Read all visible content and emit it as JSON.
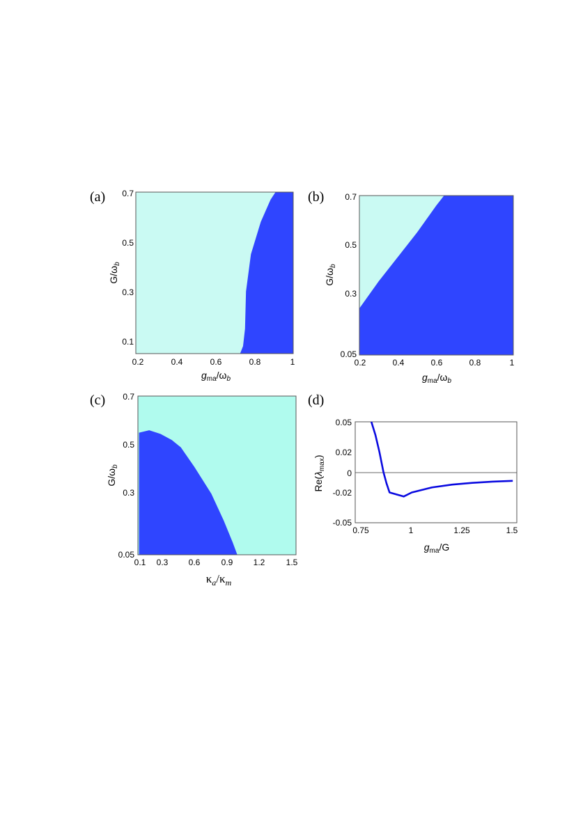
{
  "colors": {
    "stable": "#2f45ff",
    "unstable_light": "#cafaf3",
    "unstable_c": "#b0fbee",
    "curve": "#0a0ae0",
    "zero_line": "#666666"
  },
  "chart_data": [
    {
      "id": "a",
      "type": "heatmap",
      "panel_label": "(a)",
      "xlabel": {
        "main": "g",
        "sub": "ma",
        "rest": "/ω",
        "sub2": "b"
      },
      "ylabel": "G/ω_b",
      "xlim": [
        0.2,
        1.0
      ],
      "ylim": [
        0.05,
        0.7
      ],
      "xticks": [
        "0.2",
        "0.4",
        "0.6",
        "0.8",
        "1"
      ],
      "yticks": [
        "0.1",
        "0.3",
        "0.5",
        "0.7"
      ],
      "boundary": [
        [
          0.73,
          0.05
        ],
        [
          0.745,
          0.08
        ],
        [
          0.755,
          0.15
        ],
        [
          0.76,
          0.3
        ],
        [
          0.785,
          0.45
        ],
        [
          0.835,
          0.58
        ],
        [
          0.885,
          0.67
        ],
        [
          0.91,
          0.7
        ]
      ],
      "stable_side": "right"
    },
    {
      "id": "b",
      "type": "heatmap",
      "panel_label": "(b)",
      "xlabel": {
        "main": "g",
        "sub": "ma",
        "rest": "/ω",
        "sub2": "b"
      },
      "ylabel": "G/ω_b",
      "xlim": [
        0.2,
        1.0
      ],
      "ylim": [
        0.05,
        0.7
      ],
      "xticks": [
        "0.2",
        "0.4",
        "0.6",
        "0.8",
        "1"
      ],
      "yticks": [
        "0.05",
        "0.3",
        "0.5",
        "0.7"
      ],
      "boundary": [
        [
          0.2,
          0.24
        ],
        [
          0.3,
          0.35
        ],
        [
          0.4,
          0.45
        ],
        [
          0.5,
          0.55
        ],
        [
          0.6,
          0.66
        ],
        [
          0.64,
          0.7
        ]
      ],
      "stable_side": "below-right"
    },
    {
      "id": "c",
      "type": "heatmap",
      "panel_label": "(c)",
      "xlabel": {
        "main": "κ",
        "sub": "a",
        "rest": "/κ",
        "sub2": "m"
      },
      "ylabel": "G/ω_b",
      "xlim": [
        0.1,
        1.5
      ],
      "ylim": [
        0.05,
        0.7
      ],
      "xticks": [
        "0.1",
        "0.3",
        "0.6",
        "0.9",
        "1.2",
        "1.5"
      ],
      "yticks": [
        "0.05",
        "0.3",
        "0.5",
        "0.7"
      ],
      "boundary": [
        [
          0.11,
          0.05
        ],
        [
          0.11,
          0.55
        ],
        [
          0.2,
          0.56
        ],
        [
          0.3,
          0.545
        ],
        [
          0.4,
          0.52
        ],
        [
          0.48,
          0.49
        ],
        [
          0.6,
          0.41
        ],
        [
          0.75,
          0.3
        ],
        [
          0.86,
          0.19
        ],
        [
          0.94,
          0.1
        ],
        [
          0.98,
          0.05
        ]
      ],
      "stable_side": "inside"
    },
    {
      "id": "d",
      "type": "line",
      "panel_label": "(d)",
      "xlabel": {
        "main": "g",
        "sub": "ma",
        "rest": "/G",
        "sub2": ""
      },
      "ylabel": {
        "pre": "Re(",
        "sym": "λ",
        "sub": "max",
        "post": ")"
      },
      "xlim": [
        0.72,
        1.52
      ],
      "ylim": [
        -0.05,
        0.05
      ],
      "xticks": [
        "0.75",
        "1",
        "1.25",
        "1.5"
      ],
      "yticks": [
        "0.05",
        "0.02",
        "0",
        "-0.02",
        "-0.05"
      ],
      "series": [
        {
          "x": [
            0.8,
            0.82,
            0.84,
            0.86,
            0.875,
            0.89,
            0.96,
            1.0,
            1.1,
            1.2,
            1.3,
            1.4,
            1.5
          ],
          "y": [
            0.05,
            0.037,
            0.02,
            0.0,
            -0.011,
            -0.02,
            -0.024,
            -0.02,
            -0.015,
            -0.0122,
            -0.0105,
            -0.0093,
            -0.0085
          ]
        }
      ]
    }
  ]
}
